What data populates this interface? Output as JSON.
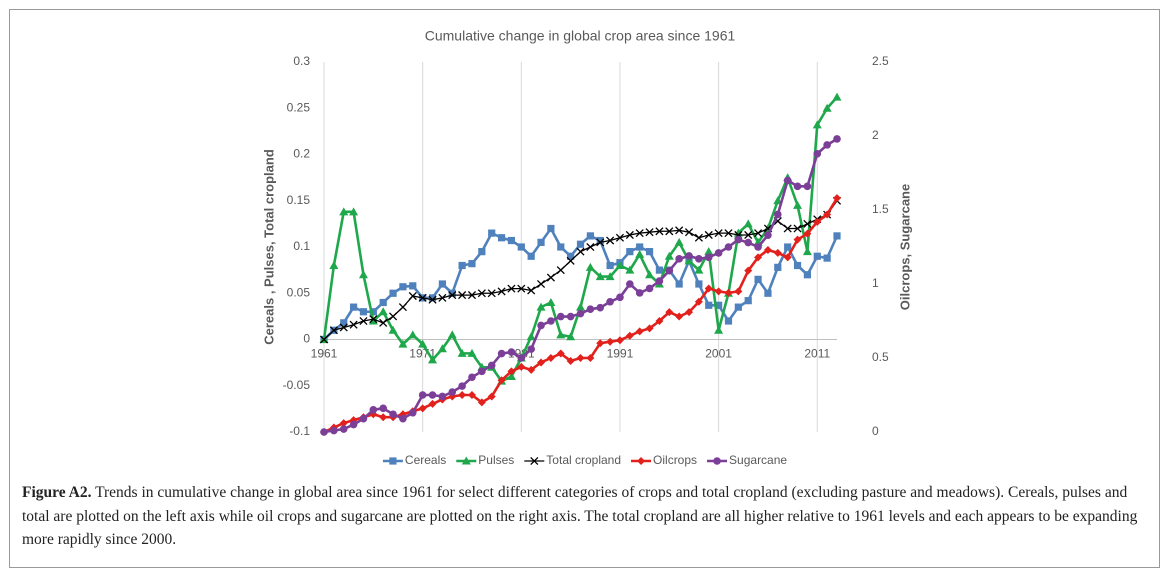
{
  "chart_data": {
    "type": "line",
    "title": "Cumulative change in global crop area since 1961",
    "ylabel": "Cereals , Pulses, Total cropland",
    "y2label": "Oilcrops, Sugarcane",
    "x": [
      1961,
      1962,
      1963,
      1964,
      1965,
      1966,
      1967,
      1968,
      1969,
      1970,
      1971,
      1972,
      1973,
      1974,
      1975,
      1976,
      1977,
      1978,
      1979,
      1980,
      1981,
      1982,
      1983,
      1984,
      1985,
      1986,
      1987,
      1988,
      1989,
      1990,
      1991,
      1992,
      1993,
      1994,
      1995,
      1996,
      1997,
      1998,
      1999,
      2000,
      2001,
      2002,
      2003,
      2004,
      2005,
      2006,
      2007,
      2008,
      2009,
      2010,
      2011,
      2012,
      2013
    ],
    "xlim": [
      1961,
      2013
    ],
    "xticks": [
      1961,
      1971,
      1981,
      1991,
      2001,
      2011
    ],
    "ylim": [
      -0.1,
      0.3
    ],
    "yticks": [
      -0.1,
      -0.05,
      0,
      0.05,
      0.1,
      0.15,
      0.2,
      0.25,
      0.3
    ],
    "y2lim": [
      0,
      2.5
    ],
    "y2ticks": [
      0,
      0.5,
      1,
      1.5,
      2,
      2.5
    ],
    "grid": "x",
    "legend": "bottom",
    "series": [
      {
        "name": "Cereals",
        "color": "#4f81bd",
        "marker": "square",
        "values": [
          0,
          0.01,
          0.018,
          0.035,
          0.03,
          0.03,
          0.04,
          0.05,
          0.057,
          0.058,
          0.045,
          0.045,
          0.06,
          0.05,
          0.08,
          0.082,
          0.095,
          0.115,
          0.11,
          0.107,
          0.1,
          0.09,
          0.105,
          0.12,
          0.1,
          0.09,
          0.103,
          0.112,
          0.107,
          0.08,
          0.083,
          0.095,
          0.1,
          0.095,
          0.075,
          0.075,
          0.06,
          0.085,
          0.06,
          0.037,
          0.037,
          0.02,
          0.035,
          0.042,
          0.065,
          0.05,
          0.078,
          0.1,
          0.08,
          0.07,
          0.09,
          0.088,
          0.112
        ]
      },
      {
        "name": "Pulses",
        "color": "#1ea84b",
        "marker": "triangle",
        "values": [
          0,
          0.08,
          0.138,
          0.138,
          0.07,
          0.02,
          0.03,
          0.01,
          -0.005,
          0.005,
          -0.005,
          -0.022,
          -0.01,
          0.005,
          -0.015,
          -0.015,
          -0.03,
          -0.03,
          -0.045,
          -0.04,
          -0.02,
          0.003,
          0.035,
          0.04,
          0.005,
          0.003,
          0.035,
          0.078,
          0.068,
          0.068,
          0.08,
          0.075,
          0.092,
          0.07,
          0.06,
          0.09,
          0.105,
          0.085,
          0.075,
          0.095,
          0.01,
          0.05,
          0.115,
          0.125,
          0.105,
          0.12,
          0.15,
          0.175,
          0.145,
          0.095,
          0.232,
          0.25,
          0.262
        ]
      },
      {
        "name": "Total cropland",
        "color": "#000000",
        "marker": "x",
        "values": [
          0,
          0.01,
          0.013,
          0.016,
          0.02,
          0.022,
          0.018,
          0.025,
          0.035,
          0.047,
          0.045,
          0.043,
          0.045,
          0.048,
          0.048,
          0.048,
          0.05,
          0.05,
          0.052,
          0.055,
          0.055,
          0.053,
          0.06,
          0.067,
          0.075,
          0.085,
          0.095,
          0.1,
          0.105,
          0.107,
          0.11,
          0.113,
          0.115,
          0.116,
          0.117,
          0.117,
          0.118,
          0.116,
          0.11,
          0.113,
          0.115,
          0.115,
          0.113,
          0.113,
          0.115,
          0.12,
          0.128,
          0.12,
          0.12,
          0.125,
          0.13,
          0.135,
          0.15
        ]
      },
      {
        "name": "Oilcrops",
        "color": "#e3211c",
        "marker": "diamond",
        "axis": "y2",
        "values": [
          0,
          0.03,
          0.06,
          0.08,
          0.1,
          0.12,
          0.1,
          0.1,
          0.12,
          0.14,
          0.16,
          0.19,
          0.22,
          0.24,
          0.25,
          0.25,
          0.2,
          0.24,
          0.35,
          0.41,
          0.44,
          0.42,
          0.47,
          0.5,
          0.53,
          0.48,
          0.5,
          0.5,
          0.6,
          0.61,
          0.62,
          0.65,
          0.68,
          0.7,
          0.75,
          0.81,
          0.78,
          0.81,
          0.88,
          0.97,
          0.95,
          0.94,
          0.95,
          1.09,
          1.18,
          1.23,
          1.21,
          1.18,
          1.3,
          1.34,
          1.42,
          1.47,
          1.58
        ]
      },
      {
        "name": "Sugarcane",
        "color": "#7b3f98",
        "marker": "circle",
        "axis": "y2",
        "values": [
          0,
          0.01,
          0.02,
          0.05,
          0.09,
          0.15,
          0.16,
          0.12,
          0.09,
          0.13,
          0.25,
          0.25,
          0.24,
          0.27,
          0.31,
          0.37,
          0.41,
          0.45,
          0.53,
          0.54,
          0.5,
          0.56,
          0.72,
          0.75,
          0.78,
          0.78,
          0.8,
          0.83,
          0.84,
          0.88,
          0.91,
          1.0,
          0.94,
          0.97,
          1.02,
          1.09,
          1.17,
          1.19,
          1.17,
          1.18,
          1.21,
          1.25,
          1.3,
          1.28,
          1.25,
          1.33,
          1.47,
          1.7,
          1.66,
          1.66,
          1.88,
          1.94,
          1.98
        ]
      }
    ]
  },
  "figure_caption": {
    "label": "Figure A2.",
    "text": "Trends in cumulative change in global area since 1961 for select different categories of crops and total cropland (excluding pasture and meadows). Cereals, pulses and total are plotted on the left axis while oil crops and sugarcane are plotted on the right axis. The total cropland are all higher relative to 1961 levels and each appears to be expanding more rapidly since 2000."
  }
}
